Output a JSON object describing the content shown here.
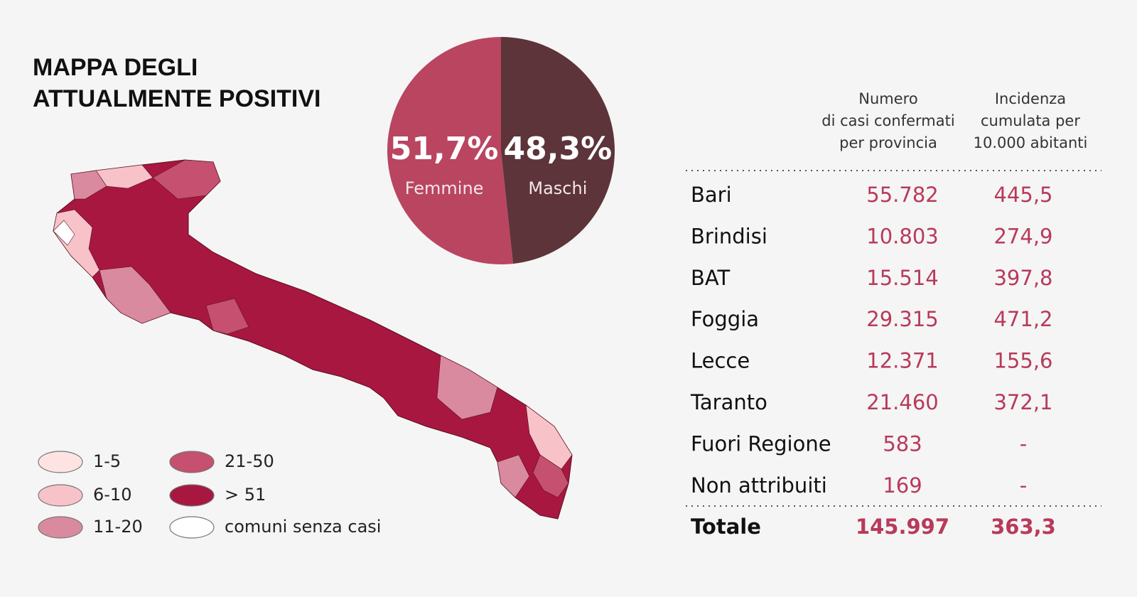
{
  "title": [
    "MAPPA DEGLI",
    "ATTUALMENTE POSITIVI"
  ],
  "chart_data": {
    "type": "pie",
    "categories": [
      "Femmine",
      "Maschi"
    ],
    "values": [
      51.7,
      48.3
    ],
    "value_labels": [
      "51,7%",
      "48,3%"
    ],
    "colors": [
      "#b94561",
      "#5c343a"
    ]
  },
  "map": {
    "legend": [
      {
        "label": "1-5",
        "color": "#fde4e2"
      },
      {
        "label": "6-10",
        "color": "#f7c3c8"
      },
      {
        "label": "11-20",
        "color": "#d98a9f"
      },
      {
        "label": "21-50",
        "color": "#c5506f"
      },
      {
        "label": "> 51",
        "color": "#a8173f"
      },
      {
        "label": "comuni senza casi",
        "color": "#ffffff"
      }
    ]
  },
  "table": {
    "headers": [
      [
        "Numero",
        "di casi confermati",
        "per provincia"
      ],
      [
        "Incidenza",
        "cumulata per",
        "10.000 abitanti"
      ]
    ],
    "rows": [
      [
        "Bari",
        "55.782",
        "445,5"
      ],
      [
        "Brindisi",
        "10.803",
        "274,9"
      ],
      [
        "BAT",
        "15.514",
        "397,8"
      ],
      [
        "Foggia",
        "29.315",
        "471,2"
      ],
      [
        "Lecce",
        "12.371",
        "155,6"
      ],
      [
        "Taranto",
        "21.460",
        "372,1"
      ],
      [
        "Fuori Regione",
        "583",
        "-"
      ],
      [
        "Non attribuiti",
        "169",
        "-"
      ]
    ],
    "total": [
      "Totale",
      "145.997",
      "363,3"
    ]
  }
}
